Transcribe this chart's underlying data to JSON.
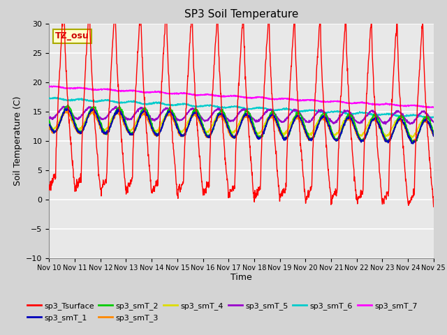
{
  "title": "SP3 Soil Temperature",
  "ylabel": "Soil Temperature (C)",
  "xlabel": "Time",
  "ylim": [
    -10,
    30
  ],
  "yticks": [
    -10,
    -5,
    0,
    5,
    10,
    15,
    20,
    25,
    30
  ],
  "xtick_labels": [
    "Nov 10",
    "Nov 11",
    "Nov 12",
    "Nov 13",
    "Nov 14",
    "Nov 15",
    "Nov 16",
    "Nov 17",
    "Nov 18",
    "Nov 19",
    "Nov 20",
    "Nov 21",
    "Nov 22",
    "Nov 23",
    "Nov 24",
    "Nov 25"
  ],
  "fig_bg_color": "#d4d4d4",
  "plot_bg_color": "#e8e8e8",
  "grid_color": "#ffffff",
  "tz_label": "TZ_osu",
  "series_colors": {
    "sp3_Tsurface": "#ff0000",
    "sp3_smT_1": "#0000bb",
    "sp3_smT_2": "#00cc00",
    "sp3_smT_3": "#ff8800",
    "sp3_smT_4": "#dddd00",
    "sp3_smT_5": "#9900cc",
    "sp3_smT_6": "#00cccc",
    "sp3_smT_7": "#ff00ff"
  },
  "legend_order": [
    "sp3_Tsurface",
    "sp3_smT_1",
    "sp3_smT_2",
    "sp3_smT_3",
    "sp3_smT_4",
    "sp3_smT_5",
    "sp3_smT_6",
    "sp3_smT_7"
  ]
}
